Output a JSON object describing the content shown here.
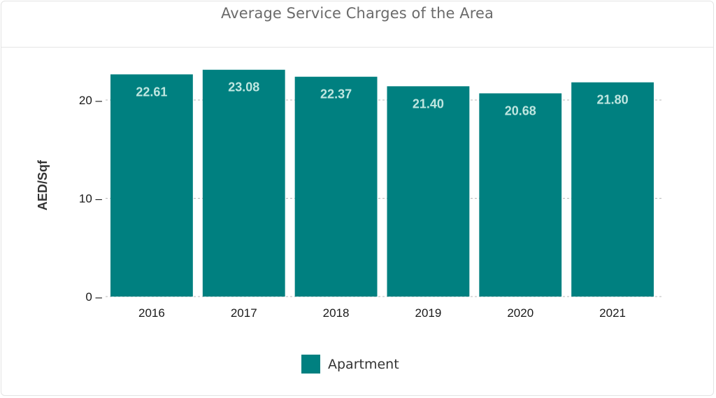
{
  "title": "Average Service Charges of the Area",
  "chart_data": {
    "type": "bar",
    "title": "Average Service Charges of the Area",
    "categories": [
      "2016",
      "2017",
      "2018",
      "2019",
      "2020",
      "2021"
    ],
    "series": [
      {
        "name": "Apartment",
        "values": [
          22.61,
          23.08,
          22.37,
          21.4,
          20.68,
          21.8
        ],
        "labels": [
          "22.61",
          "23.08",
          "22.37",
          "21.40",
          "20.68",
          "21.80"
        ],
        "color": "#008080"
      }
    ],
    "xlabel": "",
    "ylabel": "AED/Sqf",
    "ylim": [
      0,
      23.5
    ],
    "yticks": [
      0,
      10,
      20
    ],
    "ytick_labels": [
      "0 –",
      "10 –",
      "20 –"
    ],
    "grid": "horizontal dashed",
    "legend": "bottom-center"
  },
  "legend": {
    "label": "Apartment"
  }
}
